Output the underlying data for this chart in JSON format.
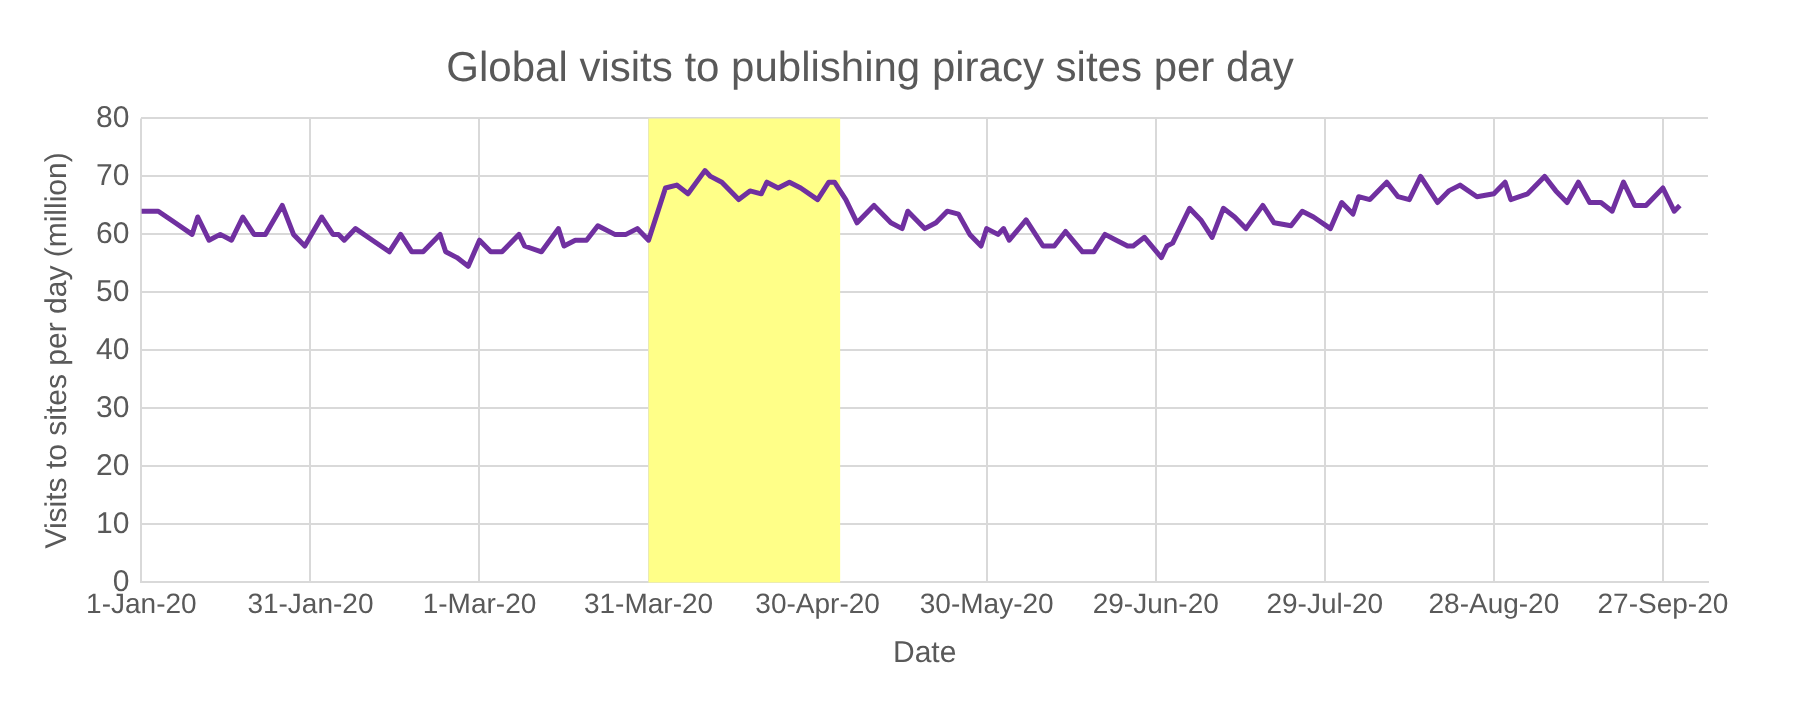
{
  "chart_data": {
    "type": "line",
    "title": "Global visits to publishing piracy sites per day",
    "xlabel": "Date",
    "ylabel": "Visits to sites per day (million)",
    "x": [
      "2020-01-01",
      "2020-01-04",
      "2020-01-07",
      "2020-01-10",
      "2020-01-11",
      "2020-01-13",
      "2020-01-15",
      "2020-01-17",
      "2020-01-19",
      "2020-01-21",
      "2020-01-23",
      "2020-01-26",
      "2020-01-28",
      "2020-01-30",
      "2020-02-02",
      "2020-02-04",
      "2020-02-05",
      "2020-02-06",
      "2020-02-08",
      "2020-02-11",
      "2020-02-14",
      "2020-02-16",
      "2020-02-18",
      "2020-02-20",
      "2020-02-23",
      "2020-02-24",
      "2020-02-26",
      "2020-02-28",
      "2020-03-01",
      "2020-03-03",
      "2020-03-05",
      "2020-03-08",
      "2020-03-09",
      "2020-03-12",
      "2020-03-15",
      "2020-03-16",
      "2020-03-18",
      "2020-03-20",
      "2020-03-22",
      "2020-03-25",
      "2020-03-27",
      "2020-03-29",
      "2020-03-31",
      "2020-04-02",
      "2020-04-03",
      "2020-04-05",
      "2020-04-07",
      "2020-04-10",
      "2020-04-11",
      "2020-04-13",
      "2020-04-16",
      "2020-04-18",
      "2020-04-20",
      "2020-04-21",
      "2020-04-23",
      "2020-04-25",
      "2020-04-27",
      "2020-04-30",
      "2020-05-02",
      "2020-05-03",
      "2020-05-05",
      "2020-05-07",
      "2020-05-10",
      "2020-05-13",
      "2020-05-15",
      "2020-05-16",
      "2020-05-19",
      "2020-05-21",
      "2020-05-23",
      "2020-05-25",
      "2020-05-27",
      "2020-05-29",
      "2020-05-30",
      "2020-06-01",
      "2020-06-02",
      "2020-06-03",
      "2020-06-06",
      "2020-06-09",
      "2020-06-11",
      "2020-06-13",
      "2020-06-16",
      "2020-06-18",
      "2020-06-20",
      "2020-06-22",
      "2020-06-24",
      "2020-06-25",
      "2020-06-27",
      "2020-06-30",
      "2020-07-01",
      "2020-07-02",
      "2020-07-05",
      "2020-07-07",
      "2020-07-09",
      "2020-07-11",
      "2020-07-13",
      "2020-07-15",
      "2020-07-18",
      "2020-07-20",
      "2020-07-23",
      "2020-07-25",
      "2020-07-27",
      "2020-07-30",
      "2020-08-01",
      "2020-08-03",
      "2020-08-04",
      "2020-08-06",
      "2020-08-09",
      "2020-08-11",
      "2020-08-13",
      "2020-08-15",
      "2020-08-18",
      "2020-08-20",
      "2020-08-22",
      "2020-08-25",
      "2020-08-28",
      "2020-08-30",
      "2020-08-31",
      "2020-09-03",
      "2020-09-06",
      "2020-09-08",
      "2020-09-10",
      "2020-09-12",
      "2020-09-14",
      "2020-09-16",
      "2020-09-18",
      "2020-09-20",
      "2020-09-22",
      "2020-09-24",
      "2020-09-27",
      "2020-09-29",
      "2020-09-30"
    ],
    "series": [
      {
        "color": "#7030a0",
        "values": [
          64,
          64,
          62,
          60,
          63,
          59,
          60,
          59,
          63,
          60,
          60,
          65,
          60,
          58,
          63,
          60,
          60,
          59,
          61,
          59,
          57,
          60,
          57,
          57,
          60,
          57,
          56,
          54.5,
          59,
          57,
          57,
          60,
          58,
          57,
          61,
          58,
          59,
          59,
          61.5,
          60,
          60,
          61,
          59,
          65,
          68,
          68.5,
          67,
          71,
          70,
          69,
          66,
          67.5,
          67,
          69,
          68,
          69,
          68,
          66,
          69,
          69,
          66,
          62,
          65,
          62,
          61,
          64,
          61,
          62,
          64,
          63.5,
          60,
          58,
          61,
          60,
          61,
          59,
          62.5,
          58,
          58,
          60.5,
          57,
          57,
          60,
          59,
          58,
          58,
          59.5,
          56,
          58,
          58.5,
          64.5,
          62.5,
          59.5,
          64.5,
          63,
          61,
          65,
          62,
          61.5,
          64,
          63,
          61,
          65.5,
          63.5,
          66.5,
          66,
          69,
          66.5,
          66,
          70,
          65.5,
          67.5,
          68.5,
          66.5,
          67,
          69,
          66,
          67,
          70,
          67.5,
          65.5,
          69,
          65.5,
          65.5,
          64,
          69,
          65,
          65,
          68,
          64,
          65
        ]
      }
    ],
    "xlim": [
      "2020-01-01",
      "2020-10-05"
    ],
    "xticks": [
      {
        "value": "2020-01-01",
        "label": "1-Jan-20"
      },
      {
        "value": "2020-01-31",
        "label": "31-Jan-20"
      },
      {
        "value": "2020-03-01",
        "label": "1-Mar-20"
      },
      {
        "value": "2020-03-31",
        "label": "31-Mar-20"
      },
      {
        "value": "2020-04-30",
        "label": "30-Apr-20"
      },
      {
        "value": "2020-05-30",
        "label": "30-May-20"
      },
      {
        "value": "2020-06-29",
        "label": "29-Jun-20"
      },
      {
        "value": "2020-07-29",
        "label": "29-Jul-20"
      },
      {
        "value": "2020-08-28",
        "label": "28-Aug-20"
      },
      {
        "value": "2020-09-27",
        "label": "27-Sep-20"
      }
    ],
    "ylim": [
      0,
      80
    ],
    "yticks": [
      0,
      10,
      20,
      30,
      40,
      50,
      60,
      70,
      80
    ],
    "bands": [
      {
        "axis": "x",
        "from": "2020-03-31",
        "to": "2020-05-04",
        "color": "#ffff88"
      }
    ],
    "grid": true,
    "legend": false
  }
}
